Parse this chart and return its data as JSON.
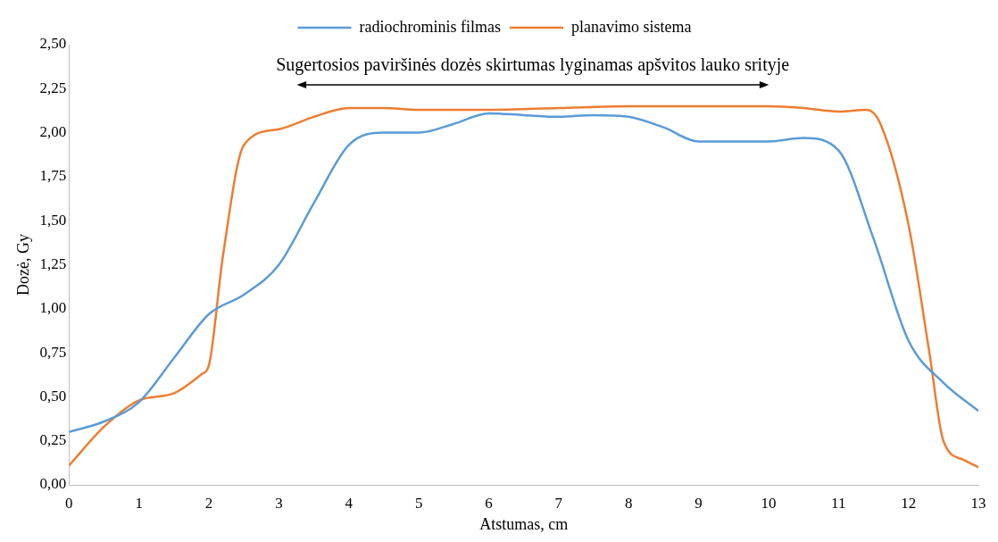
{
  "chart_data": {
    "type": "line",
    "xlabel": "Atstumas, cm",
    "ylabel": "Dozė, Gy",
    "legend": "top",
    "grid": false,
    "marker": "none",
    "line_style": "solid",
    "xlim": [
      0,
      13
    ],
    "xticks": [
      0,
      1,
      2,
      3,
      4,
      5,
      6,
      7,
      8,
      9,
      10,
      11,
      12,
      13
    ],
    "ylim": [
      0,
      2.5
    ],
    "yticks": [
      {
        "value": 0,
        "label": "0,00"
      },
      {
        "value": 0.25,
        "label": "0,25"
      },
      {
        "value": 0.5,
        "label": "0,50"
      },
      {
        "value": 0.75,
        "label": "0,75"
      },
      {
        "value": 1,
        "label": "1,00"
      },
      {
        "value": 1.25,
        "label": "1,25"
      },
      {
        "value": 1.5,
        "label": "1,50"
      },
      {
        "value": 1.75,
        "label": "1,75"
      },
      {
        "value": 2,
        "label": "2,00"
      },
      {
        "value": 2.25,
        "label": "2,25"
      },
      {
        "value": 2.5,
        "label": "2,50"
      }
    ],
    "annotations": [
      "Sugertosios paviršinės dozės skirtumas lyginamas apšvitos lauko srityje"
    ],
    "series": [
      {
        "name": "radiochrominis filmas",
        "color": "#5b9bd5",
        "x": [
          0,
          0.5,
          1,
          1.5,
          2,
          2.5,
          3,
          3.5,
          4,
          4.5,
          5,
          5.5,
          6,
          6.5,
          7,
          7.5,
          8,
          8.5,
          9,
          9.5,
          10,
          10.5,
          11,
          11.5,
          12,
          12.5,
          13
        ],
        "values": [
          0.3,
          0.36,
          0.47,
          0.72,
          0.97,
          1.08,
          1.25,
          1.6,
          1.93,
          2.0,
          2.0,
          2.05,
          2.11,
          2.1,
          2.09,
          2.1,
          2.09,
          2.03,
          1.95,
          1.95,
          1.95,
          1.97,
          1.9,
          1.4,
          0.82,
          0.58,
          0.42
        ]
      },
      {
        "name": "planavimo sistema",
        "color": "#ed7d31",
        "x": [
          0,
          0.5,
          1,
          1.5,
          1.9,
          2,
          2.2,
          2.5,
          3,
          3.5,
          4,
          4.5,
          5,
          6,
          7,
          8,
          9,
          10,
          10.5,
          11,
          11.4,
          11.6,
          12,
          12.3,
          12.5,
          12.8,
          13
        ],
        "values": [
          0.11,
          0.33,
          0.48,
          0.52,
          0.63,
          0.68,
          1.3,
          1.93,
          2.02,
          2.09,
          2.14,
          2.14,
          2.13,
          2.13,
          2.14,
          2.15,
          2.15,
          2.15,
          2.14,
          2.12,
          2.13,
          2.05,
          1.48,
          0.75,
          0.25,
          0.14,
          0.1
        ]
      }
    ]
  }
}
